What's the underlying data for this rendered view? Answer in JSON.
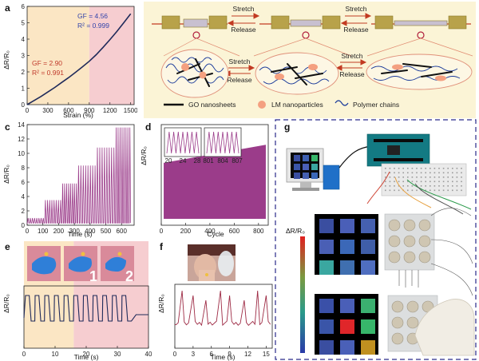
{
  "panels": {
    "a": "a",
    "b": "b",
    "c": "c",
    "d": "d",
    "e": "e",
    "f": "f",
    "g": "g"
  },
  "colors": {
    "curve": "#1f2a5a",
    "purple": "#9b3c8a",
    "red": "#b01e3c",
    "dark_red": "#9d2a44",
    "annot_red": "#c0392b",
    "annot_blue": "#3344aa",
    "region_yellow": "#fbe6c4",
    "region_pink": "#f6cdd0",
    "panel_b_bg": "#fbf4d6",
    "go_nanosheet": "#111111",
    "lm_particle": "#f4a080",
    "polymer_chain": "#1a3a9a",
    "arrow_red": "#c23b22"
  },
  "chart_data": [
    {
      "panel": "a",
      "type": "line",
      "xlabel": "Strain (%)",
      "ylabel": "ΔR/R₀",
      "xlim": [
        0,
        1550
      ],
      "ylim": [
        0,
        6
      ],
      "x_ticks": [
        "0",
        "300",
        "600",
        "900",
        "1200",
        "1500"
      ],
      "y_ticks": [
        "0",
        "1",
        "2",
        "3",
        "4",
        "5",
        "6"
      ],
      "x": [
        0,
        100,
        200,
        300,
        400,
        500,
        600,
        700,
        800,
        900,
        1000,
        1100,
        1200,
        1300,
        1400,
        1500
      ],
      "y": [
        0,
        0.25,
        0.5,
        0.77,
        1.05,
        1.35,
        1.65,
        1.97,
        2.3,
        2.65,
        3.05,
        3.5,
        3.97,
        4.47,
        5.0,
        5.55
      ],
      "regions": [
        {
          "from": 0,
          "to": 900
        },
        {
          "from": 900,
          "to": 1550
        }
      ],
      "annotations": {
        "gf_low": "GF = 2.90",
        "r2_low": "R² = 0.991",
        "gf_high": "GF = 4.56",
        "r2_high": "R² = 0.999"
      }
    },
    {
      "panel": "c",
      "type": "line",
      "xlabel": "Time (s)",
      "ylabel": "ΔR/R₀",
      "xlim": [
        0,
        680
      ],
      "ylim": [
        0,
        14
      ],
      "x_ticks": [
        "0",
        "100",
        "200",
        "300",
        "400",
        "500",
        "600"
      ],
      "y_ticks": [
        "0",
        "2",
        "4",
        "6",
        "8",
        "10",
        "12",
        "14"
      ],
      "steps": [
        {
          "from": 0,
          "to": 110,
          "amplitude": 1.0
        },
        {
          "from": 110,
          "to": 220,
          "amplitude": 3.5
        },
        {
          "from": 220,
          "to": 320,
          "amplitude": 5.8
        },
        {
          "from": 320,
          "to": 440,
          "amplitude": 8.3
        },
        {
          "from": 440,
          "to": 560,
          "amplitude": 10.8
        },
        {
          "from": 560,
          "to": 660,
          "amplitude": 13.6
        }
      ]
    },
    {
      "panel": "d",
      "type": "area",
      "xlabel": "Cycle",
      "ylabel": "ΔR/R₀",
      "xlim": [
        0,
        880
      ],
      "x_ticks": [
        "0",
        "200",
        "400",
        "600",
        "800"
      ],
      "band_top_start": 0.62,
      "band_top_end": 0.8,
      "insets": [
        {
          "ticks": [
            "20",
            "24",
            "28"
          ]
        },
        {
          "ticks": [
            "801",
            "804",
            "807"
          ]
        }
      ]
    },
    {
      "panel": "e",
      "type": "line",
      "xlabel": "Time (s)",
      "ylabel": "ΔR/R₀",
      "xlim": [
        0,
        40
      ],
      "x_ticks": [
        "0",
        "10",
        "20",
        "30",
        "40"
      ],
      "regions": [
        {
          "from": 0,
          "to": 16
        },
        {
          "from": 16,
          "to": 40
        }
      ],
      "photo_labels": [
        "1",
        "2"
      ]
    },
    {
      "panel": "f",
      "type": "line",
      "xlabel": "Time (s)",
      "ylabel": "ΔR/R₀",
      "xlim": [
        0,
        16
      ],
      "x_ticks": [
        "0",
        "3",
        "6",
        "9",
        "12",
        "15"
      ]
    }
  ],
  "diagram_b": {
    "stretch": "Stretch",
    "release": "Release",
    "legend": [
      "GO nanosheets",
      "LM nanoparticles",
      "Polymer chains"
    ]
  },
  "panel_g": {
    "scale_label": "ΔR/R₀",
    "grid_top": [
      "#3a4ea0",
      "#4a5fb8",
      "#4560b0",
      "#4a5fb5",
      "#3b68b8",
      "#3f5ea8",
      "#3aa7a0",
      "#3f6fb0",
      "#4f6ec0"
    ],
    "grid_bottom": [
      "#3a50a8",
      "#4a5fb8",
      "#3bb070",
      "#3a55a8",
      "#e0262a",
      "#37b66a",
      "#3a4ea0",
      "#4a60b8",
      "#c09020"
    ],
    "monitor_grid": [
      "#3a4ea0",
      "#3d5fb0",
      "#37b66a",
      "#3a55a8",
      "#4a5fb8",
      "#3aa7a0",
      "#3a4ea0",
      "#4560b0",
      "#3b68b8"
    ]
  }
}
